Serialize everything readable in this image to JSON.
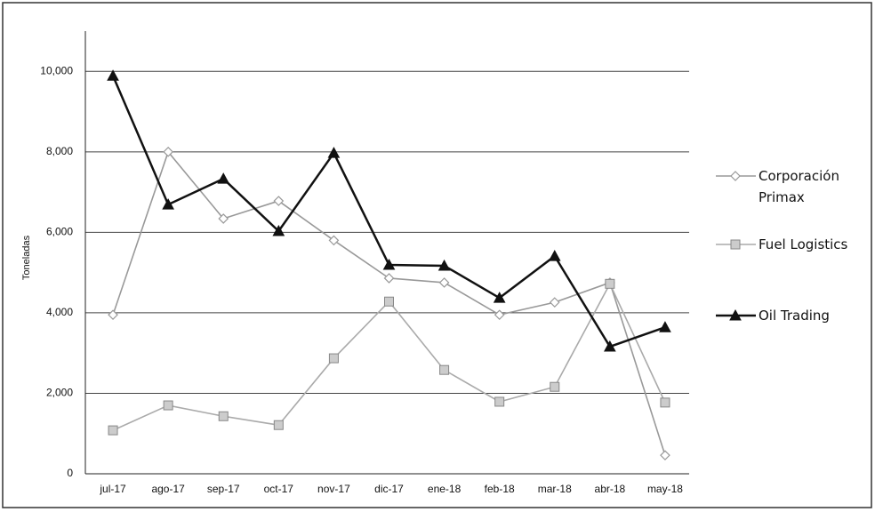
{
  "chart_data": {
    "type": "line",
    "ylabel": "Toneladas",
    "categories": [
      "jul-17",
      "ago-17",
      "sep-17",
      "oct-17",
      "nov-17",
      "dic-17",
      "ene-18",
      "feb-18",
      "mar-18",
      "abr-18",
      "may-18"
    ],
    "series": [
      {
        "name": "Corporación Primax",
        "color": "#999999",
        "marker": "diamond",
        "values": [
          3950,
          8000,
          6340,
          6780,
          5800,
          4860,
          4750,
          3950,
          4260,
          4750,
          460
        ]
      },
      {
        "name": "Fuel Logistics",
        "color": "#aaaaaa",
        "marker": "square",
        "values": [
          1080,
          1700,
          1430,
          1210,
          2870,
          4280,
          2580,
          1790,
          2160,
          4720,
          1770
        ]
      },
      {
        "name": "Oil Trading",
        "color": "#111111",
        "marker": "triangle",
        "values": [
          9890,
          6690,
          7330,
          6030,
          7970,
          5190,
          5170,
          4370,
          5410,
          3160,
          3640
        ]
      }
    ],
    "ylim": [
      0,
      11000
    ],
    "yticks": [
      0,
      {
        "value": 2000,
        "label": "2,000"
      },
      {
        "value": 4000,
        "label": "4,000"
      },
      {
        "value": 6000,
        "label": "6,000"
      },
      {
        "value": 8000,
        "label": "8,000"
      },
      {
        "value": 10000,
        "label": "10,000"
      }
    ],
    "grid": true
  }
}
